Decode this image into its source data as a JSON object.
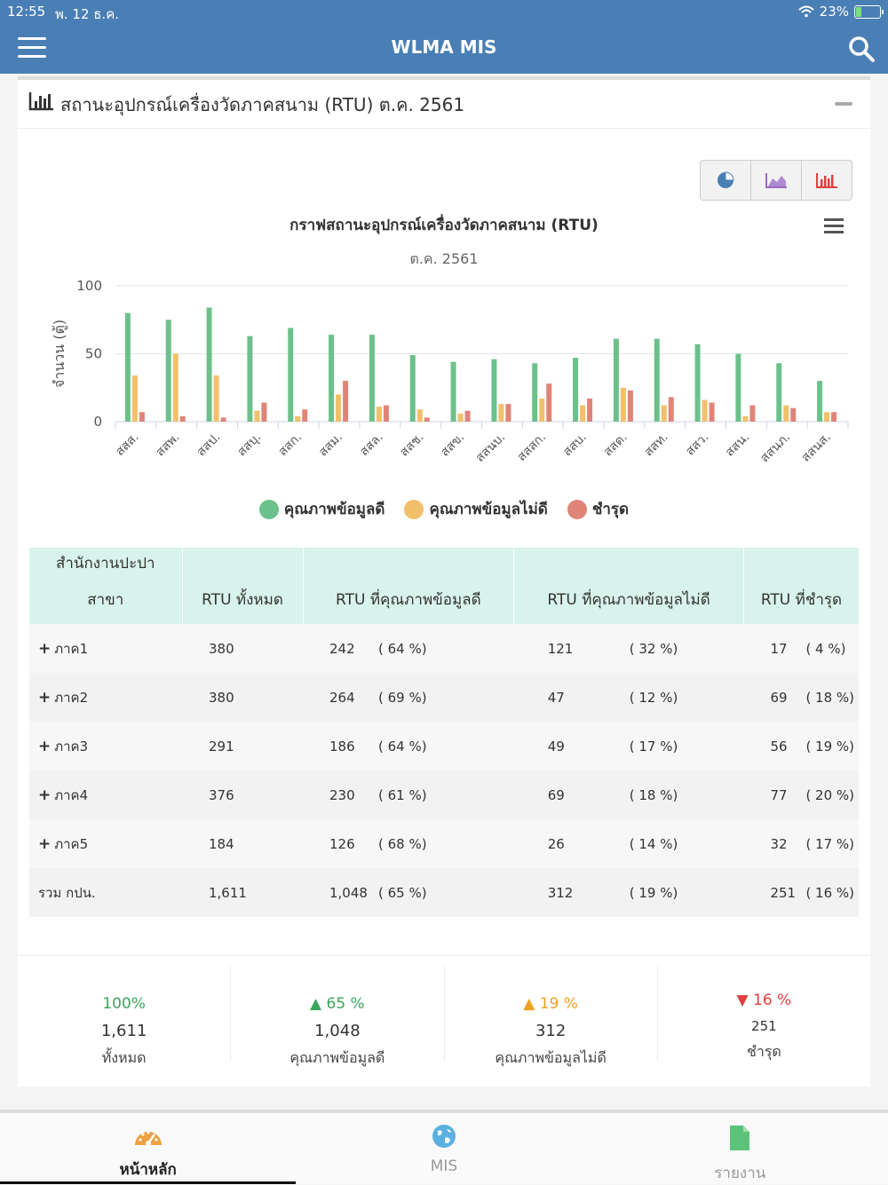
{
  "status": {
    "time": "12:55",
    "date": "พ. 12 ธ.ค.",
    "battery": "23%",
    "battery_level": 0.23
  },
  "nav": {
    "title": "WLMA MIS",
    "menu_icon": "hamburger-icon",
    "search_icon": "search-icon"
  },
  "card": {
    "title": "สถานะอุปกรณ์เครื่องวัดภาคสนาม (RTU) ต.ค. 2561"
  },
  "chart_data": {
    "type": "bar",
    "title": "กราฟสถานะอุปกรณ์เครื่องวัดภาคสนาม (RTU)",
    "subtitle": "ต.ค. 2561",
    "ylabel": "จำนวน (ตู้)",
    "xlabel": "",
    "ylim": [
      0,
      100
    ],
    "yticks": [
      0,
      50,
      100
    ],
    "grid": true,
    "legend_position": "bottom",
    "categories": [
      "สสส.",
      "สสพ.",
      "สสป.",
      "สสบุ.",
      "สสก.",
      "สสม.",
      "สสล.",
      "สสช.",
      "สสข.",
      "สสนบ.",
      "สสสก.",
      "สสบ.",
      "สสด.",
      "สสท.",
      "สสว.",
      "สสน.",
      "สสนภ.",
      "สสนส."
    ],
    "series": [
      {
        "name": "คุณภาพข้อมูลดี",
        "color": "#6cc18b",
        "values": [
          80,
          75,
          84,
          63,
          69,
          64,
          64,
          49,
          44,
          46,
          43,
          47,
          61,
          61,
          57,
          50,
          43,
          30
        ]
      },
      {
        "name": "คุณภาพข้อมูลไม่ดี",
        "color": "#f2c06a",
        "values": [
          34,
          50,
          34,
          8,
          4,
          20,
          11,
          9,
          6,
          13,
          17,
          12,
          25,
          12,
          16,
          4,
          12,
          7
        ]
      },
      {
        "name": "ชำรุด",
        "color": "#e08478",
        "values": [
          7,
          4,
          3,
          14,
          9,
          30,
          12,
          3,
          8,
          13,
          28,
          17,
          23,
          18,
          14,
          12,
          10,
          7
        ]
      }
    ]
  },
  "chart_tools": {
    "pie": "pie-chart-icon",
    "area": "area-chart-icon",
    "bar": "bar-chart-icon"
  },
  "table": {
    "headers": {
      "office_line1": "สำนักงานปะปา",
      "office_line2": "สาขา",
      "total": "RTU ทั้งหมด",
      "good": "RTU ที่คุณภาพข้อมูลดี",
      "bad": "RTU ที่คุณภาพข้อมูลไม่ดี",
      "broken": "RTU ที่ชำรุด"
    },
    "rows": [
      {
        "name": "ภาค1",
        "total": "380",
        "good": "242",
        "good_pct": "( 64 %)",
        "bad": "121",
        "bad_pct": "( 32 %)",
        "broken": "17",
        "broken_pct": "( 4 %)"
      },
      {
        "name": "ภาค2",
        "total": "380",
        "good": "264",
        "good_pct": "( 69 %)",
        "bad": "47",
        "bad_pct": "( 12 %)",
        "broken": "69",
        "broken_pct": "( 18 %)"
      },
      {
        "name": "ภาค3",
        "total": "291",
        "good": "186",
        "good_pct": "( 64 %)",
        "bad": "49",
        "bad_pct": "( 17 %)",
        "broken": "56",
        "broken_pct": "( 19 %)"
      },
      {
        "name": "ภาค4",
        "total": "376",
        "good": "230",
        "good_pct": "( 61 %)",
        "bad": "69",
        "bad_pct": "( 18 %)",
        "broken": "77",
        "broken_pct": "( 20 %)"
      },
      {
        "name": "ภาค5",
        "total": "184",
        "good": "126",
        "good_pct": "( 68 %)",
        "bad": "26",
        "bad_pct": "( 14 %)",
        "broken": "32",
        "broken_pct": "( 17 %)"
      }
    ],
    "sum": {
      "name": "รวม กปน.",
      "total": "1,611",
      "good": "1,048",
      "good_pct": "( 65 %)",
      "bad": "312",
      "bad_pct": "( 19 %)",
      "broken": "251",
      "broken_pct": "( 16 %)"
    }
  },
  "summary": [
    {
      "pct": "100%",
      "value": "1,611",
      "label": "ทั้งหมด",
      "color": "#3aa65c"
    },
    {
      "pct": "65 %",
      "value": "1,048",
      "label": "คุณภาพข้อมูลดี",
      "color": "#3aa65c"
    },
    {
      "pct": "19 %",
      "value": "312",
      "label": "คุณภาพข้อมูลไม่ดี",
      "color": "#f0a020"
    },
    {
      "pct": "16 %",
      "value": "251",
      "label": "ชำรุด",
      "color": "#e04040"
    }
  ],
  "tabs": [
    {
      "label": "หน้าหลัก",
      "icon": "dashboard-icon"
    },
    {
      "label": "MIS",
      "icon": "globe-icon"
    },
    {
      "label": "รายงาน",
      "icon": "document-icon"
    }
  ]
}
